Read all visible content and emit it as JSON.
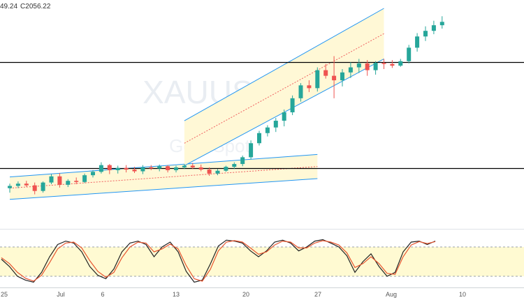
{
  "header": {
    "ohlc_partial": "49.24",
    "close_label": "C2056.22"
  },
  "watermark": {
    "symbol": "XAUUSD",
    "name": "Gold Spot"
  },
  "colors": {
    "up": "#26a69a",
    "down": "#ef5350",
    "channel_line": "#2196f3",
    "channel_fill": "#fff8d6",
    "median": "#f06060",
    "level_line": "#000000",
    "stoch_k": "#222222",
    "stoch_d": "#e8552f",
    "stoch_band": "#fffad2"
  },
  "chart_data": [
    {
      "type": "candlestick",
      "title": "",
      "x": [
        "2020-06-25",
        "2020-07-01",
        "2020-07-06",
        "2020-07-13",
        "2020-07-20",
        "2020-07-27",
        "2020-08-03",
        "2020-08-10"
      ],
      "x_tick_labels": [
        "25",
        "Jul",
        "6",
        "13",
        "20",
        "27",
        "Aug",
        "10"
      ],
      "ylim": [
        1700,
        2080
      ],
      "horizontal_levels": [
        1984,
        1796
      ],
      "last_close": 2056.22,
      "channels": [
        {
          "name": "",
          "upper_start": [
            0,
            1780
          ],
          "upper_end": [
            37,
            1820
          ],
          "lower_start": [
            0,
            1740
          ],
          "lower_end": [
            37,
            1777
          ]
        },
        {
          "name": "",
          "upper_start": [
            21,
            1880
          ],
          "upper_end": [
            45,
            2080
          ],
          "lower_start": [
            21,
            1800
          ],
          "lower_end": [
            45,
            1990
          ]
        }
      ],
      "candles": [
        [
          1760,
          1768,
          1752,
          1764
        ],
        [
          1764,
          1772,
          1760,
          1768
        ],
        [
          1768,
          1773,
          1762,
          1765
        ],
        [
          1765,
          1770,
          1749,
          1755
        ],
        [
          1755,
          1772,
          1752,
          1770
        ],
        [
          1770,
          1785,
          1767,
          1781
        ],
        [
          1781,
          1787,
          1761,
          1766
        ],
        [
          1766,
          1776,
          1762,
          1773
        ],
        [
          1773,
          1779,
          1767,
          1771
        ],
        [
          1771,
          1786,
          1769,
          1783
        ],
        [
          1783,
          1792,
          1779,
          1789
        ],
        [
          1789,
          1806,
          1786,
          1801
        ],
        [
          1801,
          1803,
          1785,
          1792
        ],
        [
          1792,
          1800,
          1786,
          1796
        ],
        [
          1796,
          1801,
          1788,
          1793
        ],
        [
          1793,
          1798,
          1787,
          1790
        ],
        [
          1790,
          1801,
          1785,
          1797
        ],
        [
          1797,
          1801,
          1792,
          1795
        ],
        [
          1795,
          1802,
          1790,
          1799
        ],
        [
          1799,
          1801,
          1788,
          1792
        ],
        [
          1792,
          1800,
          1788,
          1797
        ],
        [
          1797,
          1803,
          1794,
          1800
        ],
        [
          1800,
          1805,
          1794,
          1797
        ],
        [
          1797,
          1802,
          1790,
          1793
        ],
        [
          1793,
          1797,
          1782,
          1786
        ],
        [
          1786,
          1794,
          1783,
          1791
        ],
        [
          1791,
          1800,
          1789,
          1798
        ],
        [
          1798,
          1806,
          1794,
          1803
        ],
        [
          1803,
          1818,
          1799,
          1815
        ],
        [
          1815,
          1845,
          1811,
          1840
        ],
        [
          1840,
          1862,
          1836,
          1858
        ],
        [
          1858,
          1872,
          1852,
          1868
        ],
        [
          1868,
          1885,
          1860,
          1880
        ],
        [
          1880,
          1900,
          1870,
          1895
        ],
        [
          1895,
          1925,
          1890,
          1920
        ],
        [
          1920,
          1947,
          1914,
          1943
        ],
        [
          1943,
          1952,
          1931,
          1938
        ],
        [
          1938,
          1975,
          1932,
          1970
        ],
        [
          1970,
          1981,
          1955,
          1960
        ],
        [
          1960,
          1995,
          1920,
          1952
        ],
        [
          1952,
          1972,
          1941,
          1966
        ],
        [
          1966,
          1984,
          1956,
          1975
        ],
        [
          1975,
          1990,
          1965,
          1982
        ],
        [
          1982,
          1988,
          1960,
          1970
        ],
        [
          1970,
          1986,
          1962,
          1983
        ],
        [
          1983,
          1990,
          1972,
          1981
        ],
        [
          1981,
          1988,
          1974,
          1978
        ],
        [
          1978,
          1990,
          1976,
          1986
        ],
        [
          1986,
          2015,
          1982,
          2010
        ],
        [
          2010,
          2036,
          2003,
          2030
        ],
        [
          2030,
          2048,
          2022,
          2040
        ],
        [
          2040,
          2058,
          2034,
          2050
        ],
        [
          2050,
          2066,
          2044,
          2056
        ]
      ]
    },
    {
      "type": "line",
      "title": "",
      "indicator": "stochastic",
      "ylim": [
        0,
        100
      ],
      "band": [
        20,
        80
      ],
      "series": [
        {
          "name": "",
          "values": [
            55,
            40,
            20,
            12,
            8,
            28,
            60,
            85,
            92,
            88,
            70,
            40,
            22,
            15,
            35,
            70,
            88,
            92,
            85,
            60,
            80,
            90,
            70,
            30,
            8,
            12,
            45,
            82,
            94,
            92,
            88,
            72,
            60,
            72,
            90,
            94,
            88,
            72,
            80,
            92,
            95,
            88,
            80,
            62,
            28,
            50,
            66,
            40,
            20,
            28,
            70,
            90,
            92,
            85,
            92
          ]
        },
        {
          "name": "",
          "values": [
            58,
            46,
            28,
            16,
            10,
            22,
            48,
            76,
            88,
            90,
            78,
            52,
            30,
            18,
            28,
            58,
            80,
            90,
            88,
            70,
            76,
            86,
            76,
            42,
            15,
            10,
            34,
            72,
            90,
            93,
            90,
            78,
            65,
            70,
            84,
            92,
            90,
            78,
            78,
            88,
            93,
            90,
            84,
            68,
            38,
            46,
            60,
            46,
            26,
            24,
            60,
            84,
            91,
            87,
            91
          ]
        }
      ]
    }
  ]
}
